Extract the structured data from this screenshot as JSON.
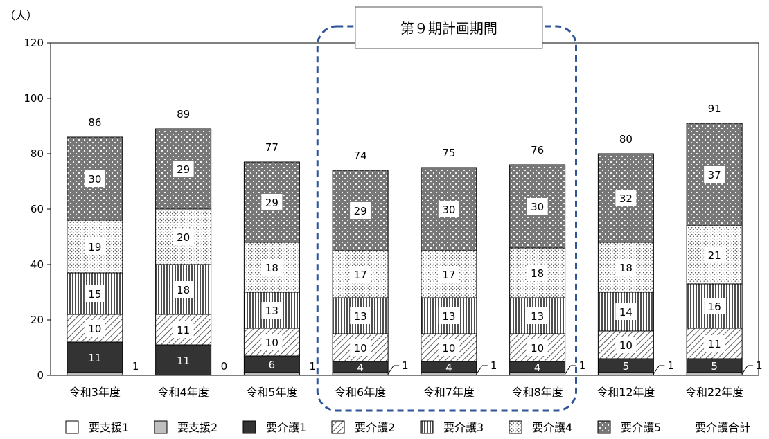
{
  "chart_data": {
    "type": "bar",
    "stacked": true,
    "unit_label": "（人）",
    "highlight_label": "第９期計画期間",
    "highlight_categories": [
      "令和6年度",
      "令和7年度",
      "令和8年度"
    ],
    "categories": [
      "令和3年度",
      "令和4年度",
      "令和5年度",
      "令和6年度",
      "令和7年度",
      "令和8年度",
      "令和12年度",
      "令和22年度"
    ],
    "ylim": [
      0,
      120
    ],
    "yticks": [
      0,
      20,
      40,
      60,
      80,
      100,
      120
    ],
    "grid": false,
    "legend_position": "bottom",
    "series": [
      {
        "name": "要支援1",
        "pattern": "white",
        "values": [
          0,
          0,
          0,
          0,
          0,
          0,
          0,
          0
        ]
      },
      {
        "name": "要支援2",
        "pattern": "gray",
        "values": [
          1,
          0,
          1,
          1,
          1,
          1,
          1,
          1
        ]
      },
      {
        "name": "要介護1",
        "pattern": "black",
        "values": [
          11,
          11,
          6,
          4,
          4,
          4,
          5,
          5
        ]
      },
      {
        "name": "要介護2",
        "pattern": "diagonal",
        "values": [
          10,
          11,
          10,
          10,
          10,
          10,
          10,
          11
        ]
      },
      {
        "name": "要介護3",
        "pattern": "vertical",
        "values": [
          15,
          18,
          13,
          13,
          13,
          13,
          14,
          16
        ]
      },
      {
        "name": "要介護4",
        "pattern": "dots",
        "values": [
          19,
          20,
          18,
          17,
          17,
          18,
          18,
          21
        ]
      },
      {
        "name": "要介護5",
        "pattern": "darkdots",
        "values": [
          30,
          29,
          29,
          29,
          30,
          30,
          32,
          37
        ]
      }
    ],
    "totals": [
      86,
      89,
      77,
      74,
      75,
      76,
      80,
      91
    ],
    "total_legend_label": "要介護合計",
    "colors": {
      "black": "#333333",
      "gray": "#bfbfbf",
      "highlight_border": "#2f5597"
    }
  }
}
